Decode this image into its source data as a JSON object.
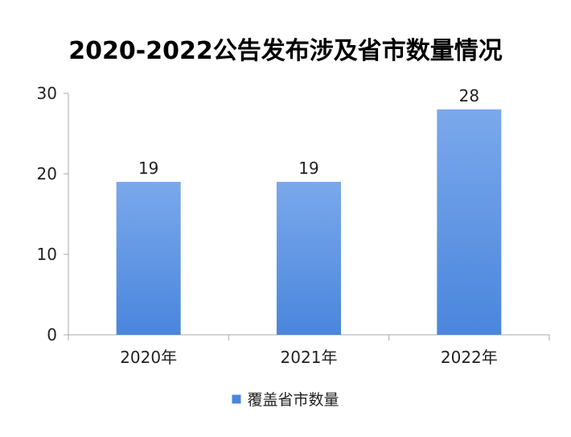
{
  "chart_data": {
    "type": "bar",
    "title": "2020-2022公告发布涉及省市数量情况",
    "categories": [
      "2020年",
      "2021年",
      "2022年"
    ],
    "series": [
      {
        "name": "覆盖省市数量",
        "values": [
          19,
          19,
          28
        ]
      }
    ],
    "ylim": [
      0,
      30
    ],
    "yticks": [
      0,
      10,
      20,
      30
    ],
    "grid": false,
    "legend": "bottom",
    "bar_color_top": "#7aa8ec",
    "bar_color_bottom": "#4a86dc",
    "axis_color": "#aaaaaa"
  }
}
